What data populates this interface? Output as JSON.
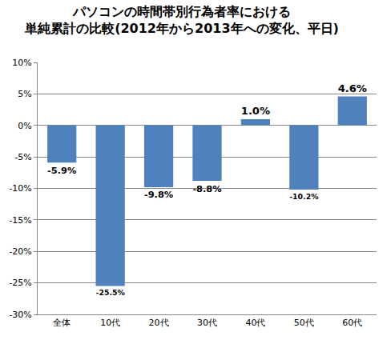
{
  "chart_data": {
    "type": "bar",
    "title": "パソコンの時間帯別行為者率における\n単純累計の比較(2012年から2013年への変化、平日)",
    "categories": [
      "全体",
      "10代",
      "20代",
      "30代",
      "40代",
      "50代",
      "60代"
    ],
    "values": [
      -5.9,
      -25.5,
      -9.8,
      -8.8,
      1.0,
      -10.2,
      4.6
    ],
    "value_labels": [
      "-5.9%",
      "-25.5%",
      "-9.8%",
      "-8.8%",
      "1.0%",
      "-10.2%",
      "4.6%"
    ],
    "color": "#4f81bd",
    "data_labels": true,
    "grid": true,
    "ylim": [
      -30,
      10
    ],
    "yticks": [
      {
        "value": -30,
        "label": "-30%"
      },
      {
        "value": -25,
        "label": "-25%"
      },
      {
        "value": -20,
        "label": "-20%"
      },
      {
        "value": -15,
        "label": "-15%"
      },
      {
        "value": -10,
        "label": "-10%"
      },
      {
        "value": -5,
        "label": "-5%"
      },
      {
        "value": 0,
        "label": "0%"
      },
      {
        "value": 5,
        "label": "5%"
      },
      {
        "value": 10,
        "label": "10%"
      }
    ]
  }
}
